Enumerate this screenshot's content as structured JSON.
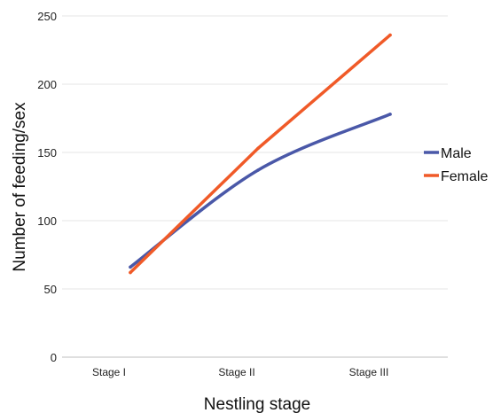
{
  "chart_data": {
    "type": "line",
    "xlabel": "Nestling stage",
    "ylabel": "Number of feeding/sex",
    "categories": [
      "Stage I",
      "Stage II",
      "Stage III"
    ],
    "ylim": [
      0,
      250
    ],
    "yticks": [
      0,
      50,
      100,
      150,
      200,
      250
    ],
    "grid": true,
    "legend_position": "right",
    "series": [
      {
        "name": "Male",
        "values": [
          66,
          137,
          178
        ],
        "color": "#4a58a8",
        "smooth": true
      },
      {
        "name": "Female",
        "values": [
          62,
          153,
          236
        ],
        "color": "#f05a28",
        "smooth": false
      }
    ]
  }
}
